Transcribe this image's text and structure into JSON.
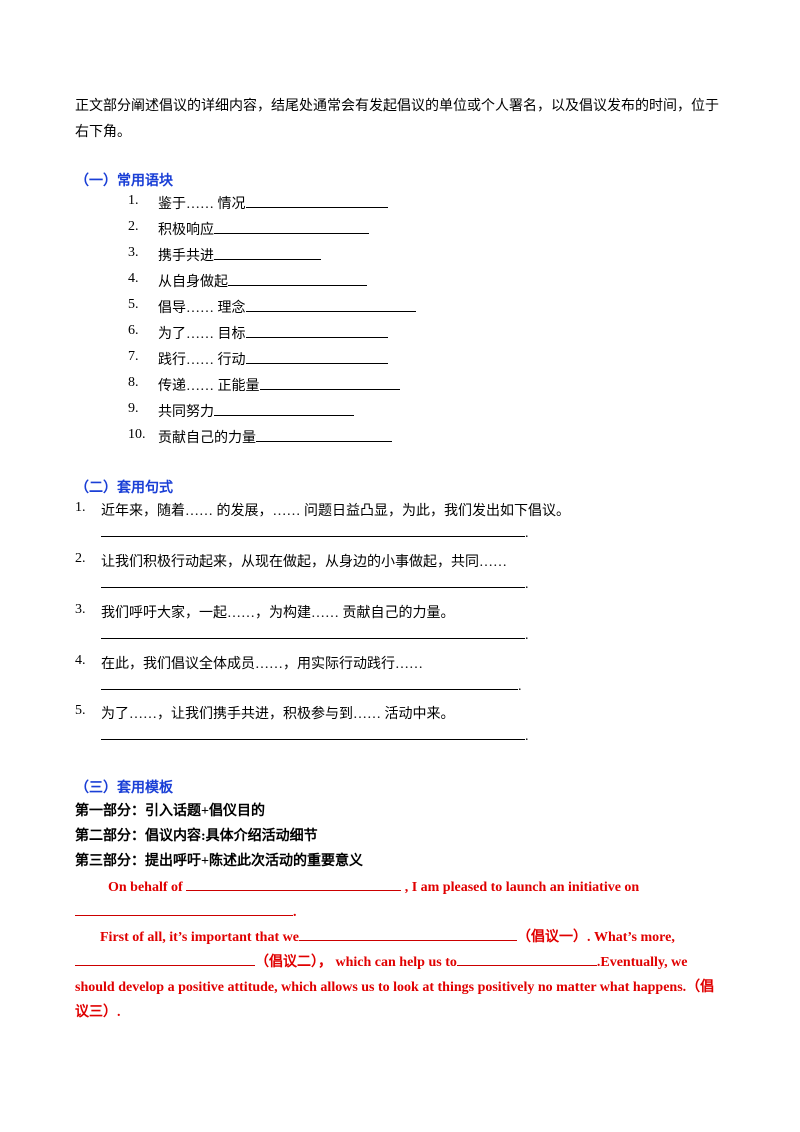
{
  "intro": "正文部分阐述倡议的详细内容，结尾处通常会有发起倡议的单位或个人署名，以及倡议发布的时间，位于右下角。",
  "section1": {
    "title": "（一）常用语块",
    "items": [
      {
        "number": "1.",
        "text": "鉴于…… 情况"
      },
      {
        "number": "2.",
        "text": "积极响应"
      },
      {
        "number": "3.",
        "text": "携手共进"
      },
      {
        "number": "4.",
        "text": "从自身做起"
      },
      {
        "number": "5.",
        "text": "倡导…… 理念"
      },
      {
        "number": "6.",
        "text": "为了…… 目标"
      },
      {
        "number": "7.",
        "text": "践行…… 行动"
      },
      {
        "number": "8.",
        "text": "传递…… 正能量"
      },
      {
        "number": "9.",
        "text": "共同努力"
      },
      {
        "number": "10.",
        "text": "贡献自己的力量"
      }
    ]
  },
  "section2": {
    "title": "（二）套用句式",
    "items": [
      {
        "number": "1.",
        "text": "近年来，随着…… 的发展，…… 问题日益凸显，为此，我们发出如下倡议。",
        "end": "."
      },
      {
        "number": "2.",
        "text": "让我们积极行动起来，从现在做起，从身边的小事做起，共同……",
        "end": "."
      },
      {
        "number": "3.",
        "text": "我们呼吁大家，一起……，为构建…… 贡献自己的力量。",
        "end": "."
      },
      {
        "number": "4.",
        "text": "在此，我们倡议全体成员……，用实际行动践行……",
        "end": "."
      },
      {
        "number": "5.",
        "text": "为了……，让我们携手共进，积极参与到…… 活动中来。",
        "end": "."
      }
    ]
  },
  "section3": {
    "title": "（三）套用模板",
    "parts": [
      "第一部分：引入话题+倡仪目的",
      "第二部分：倡议内容:具体介绍活动细节",
      "第三部分：提出呼吁+陈述此次活动的重要意义"
    ],
    "template": [
      [
        "On behalf of",
        ", I am pleased to launch an initiative on",
        "."
      ],
      [
        "First of all, it’s important that we",
        "（倡议一）. What’s more,",
        "（倡议二）， which can help us to",
        ".Eventually, we should develop a positive attitude, which allows us to look at things positively no matter what happens.（倡议三）."
      ]
    ]
  }
}
